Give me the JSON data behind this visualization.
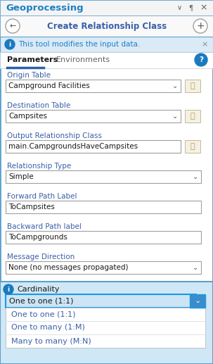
{
  "title": "Geoprocessing",
  "subtitle": "Create Relationship Class",
  "info_text": "This tool modifies the input data.",
  "tab1": "Parameters",
  "tab2": "Environments",
  "fields": [
    {
      "label": "Origin Table",
      "value": "Campground Facilities",
      "type": "dropdown",
      "folder": true
    },
    {
      "label": "Destination Table",
      "value": "Campsites",
      "type": "dropdown",
      "folder": true
    },
    {
      "label": "Output Relationship Class",
      "value": "main.CampgroundsHaveCampsites",
      "type": "text",
      "folder": true
    },
    {
      "label": "Relationship Type",
      "value": "Simple",
      "type": "dropdown",
      "folder": false
    },
    {
      "label": "Forward Path Label",
      "value": "ToCampsites",
      "type": "text",
      "folder": false
    },
    {
      "label": "Backward Path label",
      "value": "ToCampgrounds",
      "type": "text",
      "folder": false
    },
    {
      "label": "Message Direction",
      "value": "None (no messages propagated)",
      "type": "dropdown",
      "folder": false
    }
  ],
  "cardinality_label": "Cardinality",
  "cardinality_selected": "One to one (1:1)",
  "cardinality_options": [
    "One to one (1:1)",
    "One to many (1:M)",
    "Many to many (M:N)"
  ],
  "title_color": "#1e7fc4",
  "subtitle_color": "#3a5fa8",
  "label_color": "#3a5fa8",
  "info_bg": "#daeaf6",
  "info_text_color": "#1e7fc4",
  "input_border": "#a0a0a0",
  "selected_bg": "#cce4f5",
  "selected_border": "#1a9ae0",
  "cardinality_bg": "#d0e8f5",
  "tab_underline": "#2b5fa8",
  "folder_color": "#c8a020",
  "panel_bg": "#ffffff",
  "window_border": "#5ba0d0",
  "dropdown_btn_color": "#3a8ccc",
  "option_text_color": "#3a5fa8",
  "gray_text": "#666666",
  "divider_color": "#c0ccd8"
}
